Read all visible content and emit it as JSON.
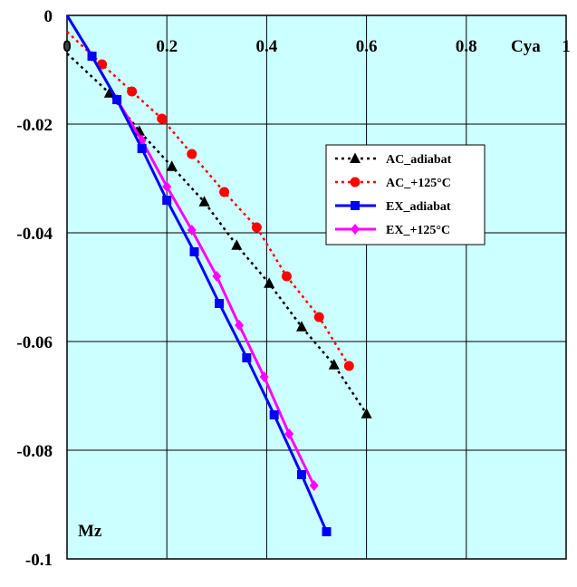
{
  "chart_data": {
    "type": "line",
    "xlabel": "Cya",
    "ylabel": "Mz",
    "xlim": [
      0,
      1
    ],
    "ylim": [
      -0.1,
      0
    ],
    "xticks": [
      "0",
      "0.2",
      "0.4",
      "0.6",
      "0.8",
      "1"
    ],
    "yticks": [
      "0",
      "-0.02",
      "-0.04",
      "-0.06",
      "-0.08",
      "-0.1"
    ],
    "grid": true,
    "plot_background": "#ccffff",
    "legend_position": "right-middle",
    "series": [
      {
        "name": "AC_adiabat",
        "color": "#000000",
        "line": "dotted",
        "marker": "triangle",
        "line_start": [
          0,
          -0.007
        ],
        "x": [
          0.085,
          0.145,
          0.21,
          0.275,
          0.34,
          0.405,
          0.47,
          0.535,
          0.6
        ],
        "y": [
          -0.0143,
          -0.0213,
          -0.0278,
          -0.0343,
          -0.0423,
          -0.0493,
          -0.0573,
          -0.0643,
          -0.0733
        ]
      },
      {
        "name": "AC_+125°C",
        "color": "#ff0000",
        "line": "dotted",
        "marker": "circle",
        "line_start": [
          0,
          -0.003
        ],
        "x": [
          0.07,
          0.13,
          0.19,
          0.25,
          0.315,
          0.38,
          0.44,
          0.505,
          0.565
        ],
        "y": [
          -0.009,
          -0.014,
          -0.019,
          -0.0255,
          -0.0325,
          -0.039,
          -0.048,
          -0.0555,
          -0.0645
        ]
      },
      {
        "name": "EX_adiabat",
        "color": "#0000ff",
        "line": "solid",
        "marker": "square",
        "line_start": [
          0,
          0
        ],
        "x": [
          0.05,
          0.1,
          0.15,
          0.2,
          0.255,
          0.305,
          0.36,
          0.415,
          0.47,
          0.52
        ],
        "y": [
          -0.0075,
          -0.0155,
          -0.0245,
          -0.034,
          -0.0435,
          -0.053,
          -0.063,
          -0.0735,
          -0.0845,
          -0.095
        ]
      },
      {
        "name": "EX_+125°C",
        "color": "#ff00ff",
        "line": "solid",
        "marker": "diamond",
        "line_start": [
          0,
          0
        ],
        "x": [
          0.05,
          0.1,
          0.15,
          0.2,
          0.25,
          0.3,
          0.345,
          0.395,
          0.445,
          0.495
        ],
        "y": [
          -0.0075,
          -0.0155,
          -0.023,
          -0.0315,
          -0.0395,
          -0.048,
          -0.057,
          -0.0665,
          -0.077,
          -0.0865
        ]
      }
    ]
  }
}
